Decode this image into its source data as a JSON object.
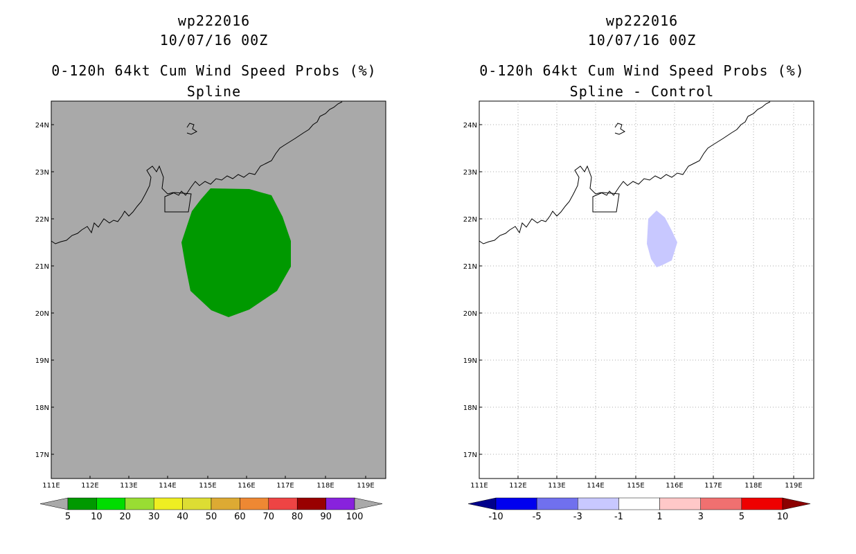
{
  "left_panel": {
    "storm_id": "wp222016",
    "datetime": "10/07/16 00Z",
    "product": "0-120h 64kt Cum Wind Speed Probs (%)",
    "method": "Spline",
    "background_color": "#a9a9a9",
    "contour_color": "#009900",
    "colorbar": {
      "colors": [
        "#009900",
        "#00dd00",
        "#99dd33",
        "#eeee22",
        "#dddd33",
        "#ddaa33",
        "#ee8833",
        "#ee4444",
        "#990000",
        "#8822dd"
      ],
      "end_color": "#a9a9a9",
      "labels": [
        "5",
        "10",
        "20",
        "30",
        "40",
        "50",
        "60",
        "70",
        "80",
        "90",
        "100"
      ]
    }
  },
  "right_panel": {
    "storm_id": "wp222016",
    "datetime": "10/07/16 00Z",
    "product": "0-120h 64kt Cum Wind Speed Probs (%)",
    "method": "Spline - Control",
    "background_color": "#ffffff",
    "contour_color": "#c8c8ff",
    "colorbar": {
      "colors": [
        "#0000ee",
        "#7070ee",
        "#c8c8ff",
        "#ffffff",
        "#ffc8c8",
        "#f07070",
        "#ee0000"
      ],
      "left_end_color": "#00008b",
      "right_end_color": "#8b0000",
      "labels": [
        "-10",
        "-5",
        "-3",
        "-1",
        "1",
        "3",
        "5",
        "10"
      ]
    }
  },
  "map": {
    "lon_labels": [
      "111E",
      "112E",
      "113E",
      "114E",
      "115E",
      "116E",
      "117E",
      "118E",
      "119E"
    ],
    "lat_labels": [
      "24N",
      "23N",
      "22N",
      "21N",
      "20N",
      "19N",
      "18N",
      "17N"
    ]
  }
}
